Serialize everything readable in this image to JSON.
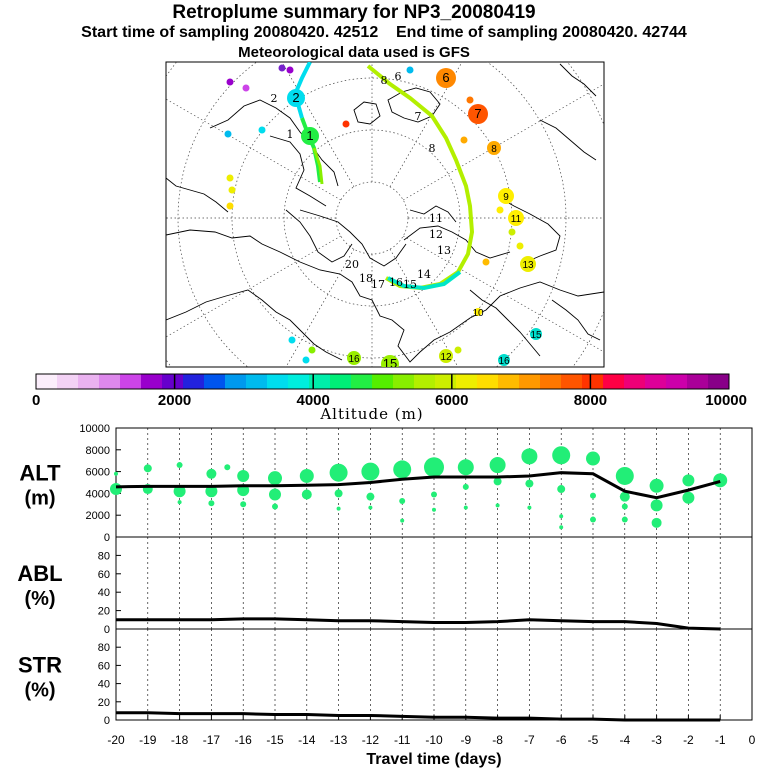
{
  "header": {
    "title": "Retroplume summary for NP3_20080419",
    "subtitle_start": "Start time of sampling 20080420. 42512",
    "subtitle_end": "End time of sampling 20080420. 42744",
    "met_data": "Meteorological data used is GFS"
  },
  "colors": {
    "trajectory_primary": "#b3ef00",
    "trajectory_secondary": "#00e6c8",
    "points": "#22ee77",
    "line": "#000000"
  },
  "colorbar": {
    "label": "Altitude (m)",
    "ticks": [
      "0",
      "2000",
      "4000",
      "6000",
      "8000",
      "10000"
    ],
    "colors": [
      "#fbeefb",
      "#f3d2f5",
      "#eab2f0",
      "#dd88ec",
      "#cc44e8",
      "#9900cc",
      "#6600cc",
      "#2222dd",
      "#0055ee",
      "#0099ee",
      "#00bbee",
      "#00ddee",
      "#00eedd",
      "#00eeaa",
      "#00ee77",
      "#22ee44",
      "#55ee00",
      "#88ee00",
      "#b3ef00",
      "#ccee00",
      "#eeee00",
      "#ffdd00",
      "#ffbb00",
      "#ff9900",
      "#ff7700",
      "#ff5500",
      "#ff3300",
      "#ff0044",
      "#ee0077",
      "#dd0099",
      "#cc00aa",
      "#aa0099",
      "#880088"
    ]
  },
  "map": {
    "day_labels": [
      {
        "t": "6",
        "c": "#ff8800",
        "s": "large"
      },
      {
        "t": "7",
        "c": "#ff5500",
        "s": "large"
      },
      {
        "t": "8",
        "c": "#ffaa00",
        "s": "mid"
      },
      {
        "t": "9",
        "c": "#ffee00",
        "s": "mid"
      },
      {
        "t": "10",
        "c": "#ffee00",
        "s": "small"
      },
      {
        "t": "11",
        "c": "#ffee00",
        "s": "mid"
      },
      {
        "t": "12",
        "c": "#ccee00",
        "s": "mid"
      },
      {
        "t": "13",
        "c": "#eeee00",
        "s": "mid"
      },
      {
        "t": "15",
        "c": "#00ddcc",
        "s": "small"
      },
      {
        "t": "16",
        "c": "#99ee00",
        "s": "mid"
      },
      {
        "t": "15",
        "c": "#99ee00",
        "s": "mid"
      },
      {
        "t": "16",
        "c": "#00ddcc",
        "s": "small"
      },
      {
        "t": "2",
        "c": "#00ddee",
        "s": "mid"
      },
      {
        "t": "1",
        "c": "#22ee44",
        "s": "mid"
      }
    ],
    "track_labels": [
      "8",
      "7",
      "6",
      "8",
      "2",
      "1",
      "11",
      "12",
      "13",
      "14",
      "15",
      "16",
      "17",
      "18",
      "20"
    ]
  },
  "chart_data": [
    {
      "type": "scatter",
      "panel": "ALT",
      "ylabel": "ALT (m)",
      "ylim": [
        0,
        10000
      ],
      "yticks": [
        "0",
        "2000",
        "4000",
        "6000",
        "8000",
        "10000"
      ],
      "x": [
        -20,
        -19,
        -18,
        -17,
        -16,
        -15,
        -14,
        -13,
        -12,
        -11,
        -10,
        -9,
        -8,
        -7,
        -6,
        -5,
        -4,
        -3,
        -2,
        -1
      ],
      "median_altitude": [
        4600,
        4650,
        4650,
        4650,
        4700,
        4700,
        4750,
        4800,
        5000,
        5300,
        5500,
        5500,
        5500,
        5600,
        5900,
        5800,
        4200,
        3600,
        4300,
        5100
      ],
      "dots": [
        {
          "x": -20,
          "y": 5800,
          "r": 2
        },
        {
          "x": -20,
          "y": 4400,
          "r": 6
        },
        {
          "x": -19,
          "y": 6300,
          "r": 4
        },
        {
          "x": -19,
          "y": 4400,
          "r": 5
        },
        {
          "x": -18,
          "y": 6600,
          "r": 3
        },
        {
          "x": -18,
          "y": 4200,
          "r": 6
        },
        {
          "x": -18,
          "y": 3200,
          "r": 2
        },
        {
          "x": -17,
          "y": 5800,
          "r": 5
        },
        {
          "x": -17,
          "y": 4200,
          "r": 6
        },
        {
          "x": -17,
          "y": 3100,
          "r": 3
        },
        {
          "x": -16.5,
          "y": 6400,
          "r": 3
        },
        {
          "x": -16,
          "y": 5600,
          "r": 6
        },
        {
          "x": -16,
          "y": 4300,
          "r": 6
        },
        {
          "x": -16,
          "y": 3000,
          "r": 3
        },
        {
          "x": -15,
          "y": 5400,
          "r": 7
        },
        {
          "x": -15,
          "y": 3900,
          "r": 6
        },
        {
          "x": -15,
          "y": 2800,
          "r": 3
        },
        {
          "x": -14,
          "y": 5600,
          "r": 7
        },
        {
          "x": -14,
          "y": 3900,
          "r": 5
        },
        {
          "x": -13,
          "y": 5900,
          "r": 9
        },
        {
          "x": -13,
          "y": 4000,
          "r": 4
        },
        {
          "x": -13,
          "y": 2600,
          "r": 2
        },
        {
          "x": -12,
          "y": 6000,
          "r": 9
        },
        {
          "x": -12,
          "y": 3700,
          "r": 4
        },
        {
          "x": -12,
          "y": 2700,
          "r": 2
        },
        {
          "x": -11,
          "y": 6200,
          "r": 9
        },
        {
          "x": -11,
          "y": 3300,
          "r": 3
        },
        {
          "x": -11,
          "y": 1500,
          "r": 2
        },
        {
          "x": -10,
          "y": 6400,
          "r": 10
        },
        {
          "x": -10,
          "y": 3900,
          "r": 3
        },
        {
          "x": -10,
          "y": 2500,
          "r": 2
        },
        {
          "x": -9,
          "y": 6400,
          "r": 8
        },
        {
          "x": -9,
          "y": 4600,
          "r": 3
        },
        {
          "x": -9,
          "y": 2700,
          "r": 2
        },
        {
          "x": -8,
          "y": 6600,
          "r": 8
        },
        {
          "x": -8,
          "y": 5100,
          "r": 4
        },
        {
          "x": -8,
          "y": 2900,
          "r": 2
        },
        {
          "x": -7,
          "y": 7400,
          "r": 8
        },
        {
          "x": -7,
          "y": 4900,
          "r": 4
        },
        {
          "x": -7,
          "y": 2700,
          "r": 2
        },
        {
          "x": -6,
          "y": 7500,
          "r": 9
        },
        {
          "x": -6,
          "y": 4400,
          "r": 4
        },
        {
          "x": -6,
          "y": 1900,
          "r": 2
        },
        {
          "x": -6,
          "y": 900,
          "r": 2
        },
        {
          "x": -5,
          "y": 7200,
          "r": 7
        },
        {
          "x": -5,
          "y": 3800,
          "r": 3
        },
        {
          "x": -5,
          "y": 1600,
          "r": 3
        },
        {
          "x": -4,
          "y": 5600,
          "r": 9
        },
        {
          "x": -4,
          "y": 3700,
          "r": 5
        },
        {
          "x": -4,
          "y": 2800,
          "r": 3
        },
        {
          "x": -4,
          "y": 1600,
          "r": 3
        },
        {
          "x": -3,
          "y": 4700,
          "r": 7
        },
        {
          "x": -3,
          "y": 2900,
          "r": 6
        },
        {
          "x": -3,
          "y": 1300,
          "r": 5
        },
        {
          "x": -2,
          "y": 5200,
          "r": 6
        },
        {
          "x": -2,
          "y": 3600,
          "r": 6
        },
        {
          "x": -1,
          "y": 5200,
          "r": 7
        }
      ]
    },
    {
      "type": "line",
      "panel": "ABL",
      "ylabel": "ABL (%)",
      "ylim": [
        0,
        100
      ],
      "yticks": [
        "0",
        "20",
        "40",
        "60",
        "80"
      ],
      "x": [
        -20,
        -19,
        -18,
        -17,
        -16,
        -15,
        -14,
        -13,
        -12,
        -11,
        -10,
        -9,
        -8,
        -7,
        -6,
        -5,
        -4,
        -3,
        -2,
        -1
      ],
      "values": [
        10,
        10,
        10,
        10,
        11,
        11,
        10,
        9,
        9,
        8,
        7,
        7,
        8,
        10,
        9,
        8,
        8,
        6,
        1,
        0
      ]
    },
    {
      "type": "line",
      "panel": "STR",
      "ylabel": "STR (%)",
      "ylim": [
        0,
        100
      ],
      "yticks": [
        "0",
        "20",
        "40",
        "60",
        "80"
      ],
      "x": [
        -20,
        -19,
        -18,
        -17,
        -16,
        -15,
        -14,
        -13,
        -12,
        -11,
        -10,
        -9,
        -8,
        -7,
        -6,
        -5,
        -4,
        -3,
        -2,
        -1
      ],
      "values": [
        8,
        8,
        7,
        7,
        7,
        6,
        6,
        5,
        5,
        4,
        3,
        3,
        2,
        2,
        1,
        1,
        0,
        0,
        0,
        0
      ],
      "xlabel": "Travel time (days)",
      "xticks": [
        "-20",
        "-19",
        "-18",
        "-17",
        "-16",
        "-15",
        "-14",
        "-13",
        "-12",
        "-11",
        "-10",
        "-9",
        "-8",
        "-7",
        "-6",
        "-5",
        "-4",
        "-3",
        "-2",
        "-1",
        "0"
      ]
    }
  ]
}
